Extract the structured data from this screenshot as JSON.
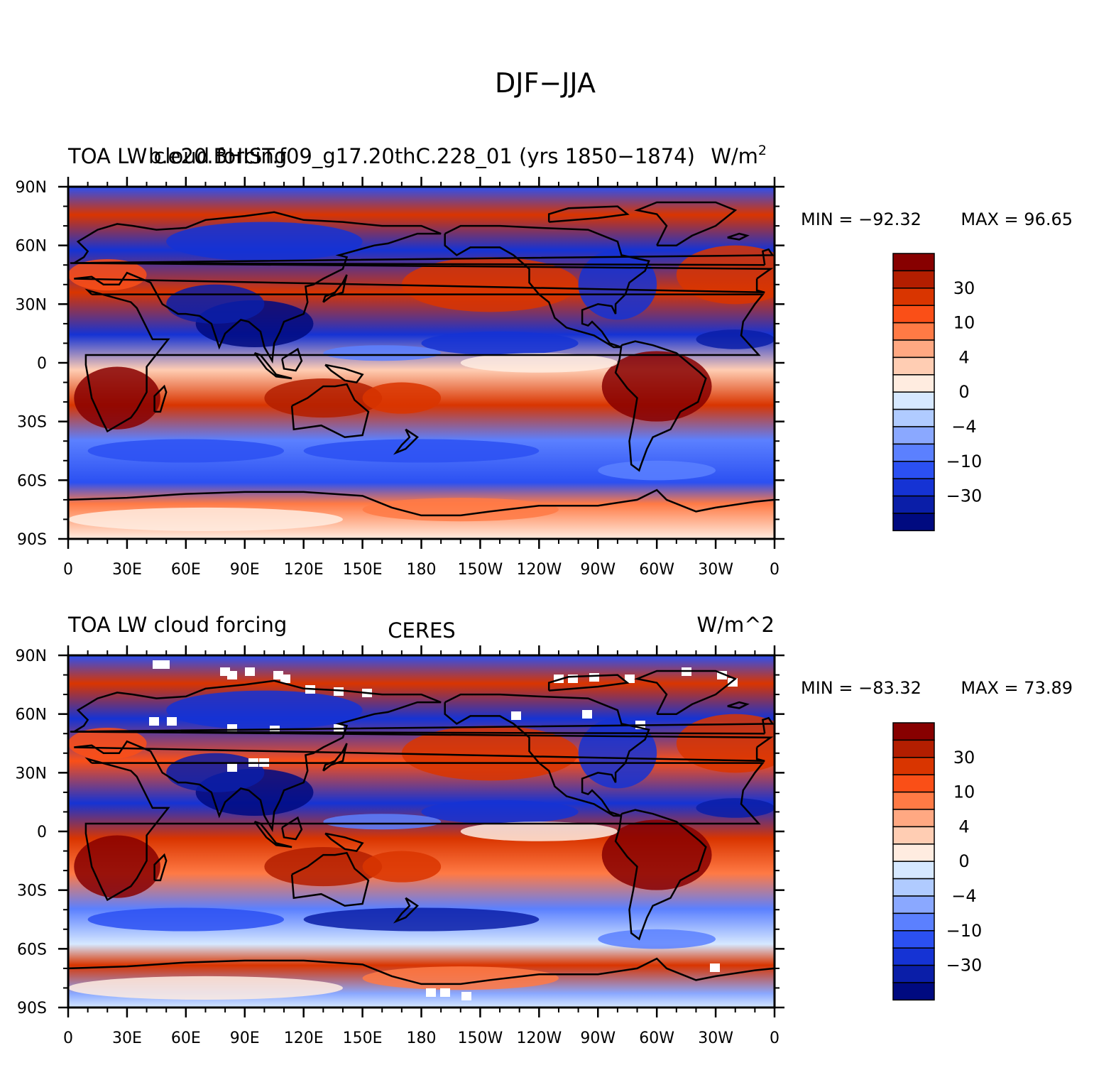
{
  "figure": {
    "title": "DJF−JJA"
  },
  "panels": [
    {
      "left_title": "TOA LW cloud forcing",
      "center_title": "b.e20.BHIST.f09_g17.20thC.228_01 (yrs 1850−1874)",
      "units": "W/m",
      "units_superscript": "2",
      "min_label": "MIN = −92.32",
      "max_label": "MAX =  96.65",
      "min_value": -92.32,
      "max_value": 96.65
    },
    {
      "left_title": "TOA LW cloud forcing",
      "center_title": "CERES",
      "units": "W/m^2",
      "units_superscript": "",
      "min_label": "MIN = −83.32",
      "max_label": "MAX =  73.89",
      "min_value": -83.32,
      "max_value": 73.89
    }
  ],
  "axes": {
    "x_ticks": [
      "0",
      "30E",
      "60E",
      "90E",
      "120E",
      "150E",
      "180",
      "150W",
      "120W",
      "90W",
      "60W",
      "30W",
      "0"
    ],
    "y_ticks": [
      "90N",
      "60N",
      "30N",
      "0",
      "30S",
      "60S",
      "90S"
    ]
  },
  "colorbar": {
    "labels": [
      {
        "level": 2,
        "text": "30"
      },
      {
        "level": 4,
        "text": "10"
      },
      {
        "level": 6,
        "text": "4"
      },
      {
        "level": 8,
        "text": "0"
      },
      {
        "level": 10,
        "text": "−4"
      },
      {
        "level": 12,
        "text": "−10"
      },
      {
        "level": 14,
        "text": "−30"
      }
    ],
    "colors_top_to_bottom": [
      "#870000",
      "#b31e00",
      "#d93500",
      "#fa4f17",
      "#ff7a45",
      "#ffa882",
      "#ffcdb3",
      "#ffece0",
      "#d6e8ff",
      "#b0cbff",
      "#8aa8ff",
      "#5b80ff",
      "#2b50f2",
      "#1533d4",
      "#0a1ea8",
      "#000a80"
    ]
  },
  "colors": {
    "land_outline": "#000000",
    "missing": "#ffffff"
  }
}
